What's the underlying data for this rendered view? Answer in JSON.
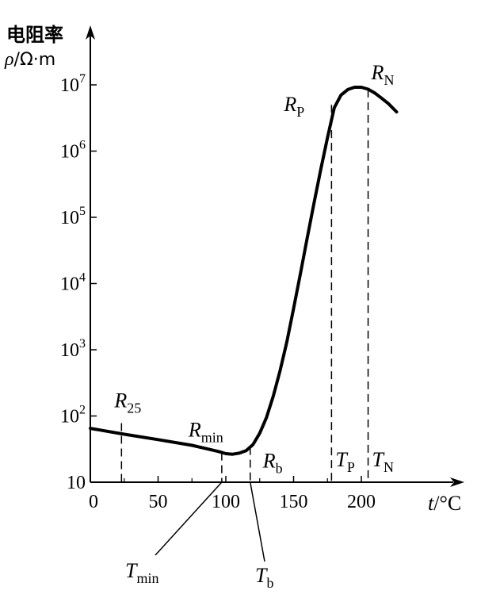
{
  "chart_data": {
    "type": "line",
    "title": "",
    "ylabel": {
      "line1": "电阻率",
      "line2_symbol": "ρ",
      "line2_unit": "/Ω·m"
    },
    "xlabel": {
      "symbol": "t",
      "unit": "/°C"
    },
    "x_scale": "linear",
    "y_scale": "log",
    "xlim": [
      0,
      270
    ],
    "ylim": [
      10,
      10000000
    ],
    "x_ticks": [
      {
        "value": 0,
        "label": "0"
      },
      {
        "value": 50,
        "label": "50"
      },
      {
        "value": 100,
        "label": "100"
      },
      {
        "value": 150,
        "label": "150"
      },
      {
        "value": 200,
        "label": "200"
      }
    ],
    "y_ticks": [
      {
        "value": 10,
        "base": "10",
        "exp": ""
      },
      {
        "value": 100,
        "base": "10",
        "exp": "2"
      },
      {
        "value": 1000,
        "base": "10",
        "exp": "3"
      },
      {
        "value": 10000,
        "base": "10",
        "exp": "4"
      },
      {
        "value": 100000,
        "base": "10",
        "exp": "5"
      },
      {
        "value": 1000000,
        "base": "10",
        "exp": "6"
      },
      {
        "value": 10000000,
        "base": "10",
        "exp": "7"
      }
    ],
    "series": [
      {
        "x": [
          0,
          25,
          50,
          75,
          95,
          100,
          105,
          110,
          115,
          120,
          125,
          130,
          135,
          140,
          145,
          150,
          155,
          160,
          165,
          170,
          175,
          180,
          185,
          190,
          195,
          200,
          205,
          210,
          215,
          220,
          226
        ],
        "y": [
          65,
          53,
          44,
          36,
          29,
          27,
          26.5,
          27.5,
          30,
          37,
          55,
          95,
          200,
          480,
          1300,
          4200,
          14000,
          48000,
          160000,
          520000,
          1600000,
          4500000,
          7000000,
          8500000,
          9200000,
          9200000,
          8600000,
          7500000,
          6300000,
          5200000,
          3900000
        ]
      }
    ],
    "annotations": [
      {
        "id": "R25",
        "base": "R",
        "sub": "25",
        "x": 23,
        "y": 78,
        "to_axis": true
      },
      {
        "id": "Rmin",
        "base": "R",
        "sub": "min",
        "x": 97,
        "y": 28,
        "to_axis": true
      },
      {
        "id": "Rb",
        "base": "R",
        "sub": "b",
        "x": 118,
        "y": 34,
        "to_axis": true
      },
      {
        "id": "RP",
        "base": "R",
        "sub": "P",
        "x": 178,
        "y": 5000000,
        "to_axis": true
      },
      {
        "id": "RN",
        "base": "R",
        "sub": "N",
        "x": 205,
        "y": 8500000,
        "to_axis": true
      }
    ],
    "temperature_labels": [
      {
        "id": "TP",
        "base": "T",
        "sub": "P",
        "x": 178
      },
      {
        "id": "TN",
        "base": "T",
        "sub": "N",
        "x": 205
      }
    ],
    "leader_labels": [
      {
        "id": "Tmin",
        "base": "T",
        "sub": "min",
        "x": 97
      },
      {
        "id": "Tb",
        "base": "T",
        "sub": "b",
        "x": 118
      }
    ],
    "grid": false,
    "legend": "none"
  }
}
